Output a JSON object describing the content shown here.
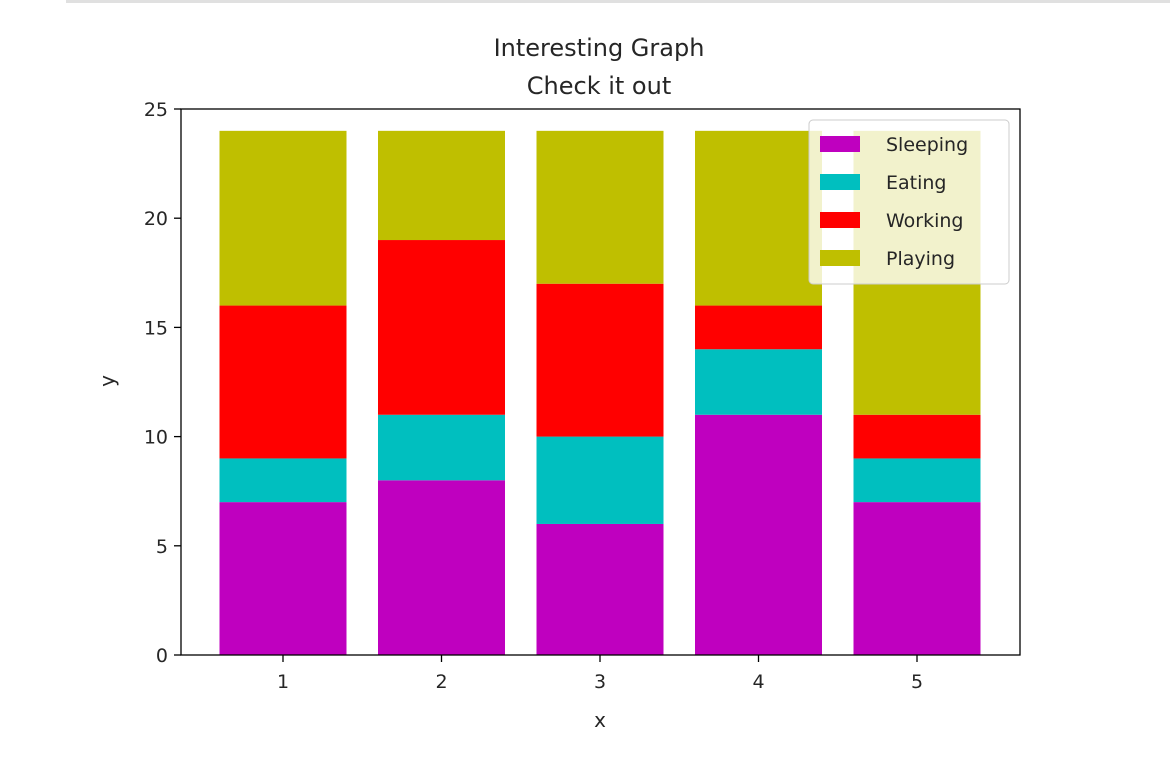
{
  "chart_data": {
    "type": "bar",
    "stacked": true,
    "title": "Interesting Graph",
    "subtitle": "Check it out",
    "xlabel": "x",
    "ylabel": "y",
    "categories": [
      "1",
      "2",
      "3",
      "4",
      "5"
    ],
    "ylim": [
      0,
      25
    ],
    "yticks": [
      "0",
      "5",
      "10",
      "15",
      "20",
      "25"
    ],
    "grid": false,
    "legend_position": "top-right",
    "series": [
      {
        "name": "Sleeping",
        "color": "#bf00bf",
        "values": [
          7,
          8,
          6,
          11,
          7
        ]
      },
      {
        "name": "Eating",
        "color": "#00bfbf",
        "values": [
          2,
          3,
          4,
          3,
          2
        ]
      },
      {
        "name": "Working",
        "color": "#ff0000",
        "values": [
          7,
          8,
          7,
          2,
          2
        ]
      },
      {
        "name": "Playing",
        "color": "#bfbf00",
        "values": [
          8,
          5,
          7,
          8,
          13
        ]
      }
    ]
  }
}
